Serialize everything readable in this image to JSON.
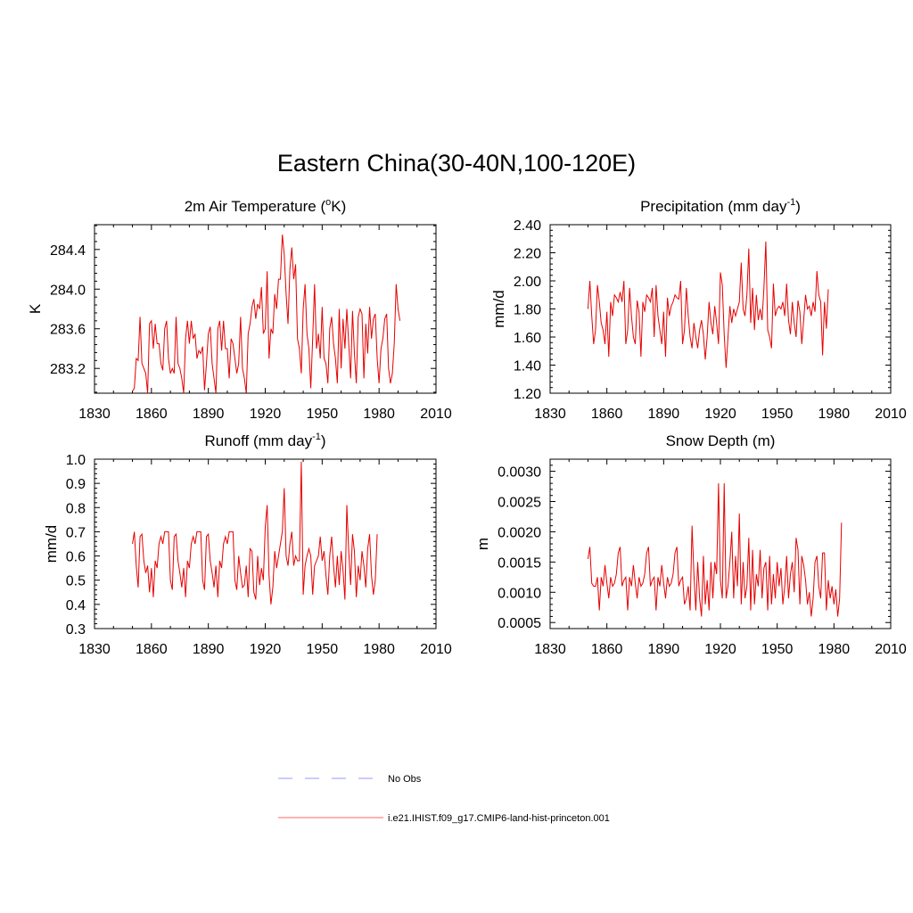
{
  "figure": {
    "title": "Eastern China(30-40N,100-120E)"
  },
  "legend": {
    "items": [
      {
        "label": "No Obs",
        "color": "#9999ff",
        "style": "dashed"
      },
      {
        "label": "i.e21.IHIST.f09_g17.CMIP6-land-hist-princeton.001",
        "color": "#ff6666",
        "style": "solid"
      }
    ]
  },
  "chart_data": [
    {
      "type": "line",
      "title": "2m Air Temperature (",
      "title_sup": "o",
      "title_after": "K)",
      "ylabel": "K",
      "xlim": [
        1830,
        2010
      ],
      "ylim": [
        282.95,
        284.65
      ],
      "xticks": [
        "1830",
        "1860",
        "1890",
        "1920",
        "1950",
        "1980",
        "2010"
      ],
      "yticks": [
        "283.2",
        "283.6",
        "284.0",
        "284.4"
      ],
      "color": "#e60000",
      "series": [
        {
          "x0": 1850,
          "values": [
            282.97,
            283.0,
            283.3,
            283.28,
            283.72,
            283.25,
            283.2,
            283.15,
            282.95,
            283.65,
            283.68,
            283.4,
            283.65,
            283.45,
            283.45,
            283.25,
            283.18,
            283.6,
            283.68,
            283.3,
            283.15,
            283.2,
            283.15,
            283.72,
            283.25,
            283.2,
            283.1,
            282.95,
            283.5,
            283.68,
            283.45,
            283.68,
            283.5,
            283.55,
            283.3,
            283.38,
            283.35,
            283.42,
            282.98,
            283.25,
            283.55,
            283.62,
            283.25,
            283.1,
            282.95,
            283.6,
            283.68,
            283.38,
            283.68,
            283.4,
            283.4,
            283.1,
            283.5,
            283.45,
            283.3,
            283.15,
            283.25,
            283.72,
            283.2,
            283.1,
            282.95,
            283.55,
            283.65,
            283.82,
            283.9,
            283.7,
            283.85,
            283.8,
            284.02,
            283.55,
            283.6,
            284.18,
            283.3,
            283.6,
            283.55,
            283.95,
            283.8,
            284.1,
            284.1,
            284.55,
            284.35,
            283.95,
            283.65,
            284.2,
            284.42,
            284.1,
            284.25,
            283.5,
            283.4,
            283.15,
            283.8,
            284.05,
            283.55,
            283.4,
            283.0,
            283.5,
            284.05,
            283.4,
            283.55,
            283.3,
            283.82,
            283.3,
            283.25,
            283.05,
            283.6,
            283.72,
            283.45,
            283.3,
            283.05,
            283.8,
            283.2,
            283.7,
            283.4,
            283.8,
            283.45,
            283.1,
            283.78,
            283.35,
            283.05,
            283.72,
            283.8,
            283.75,
            283.1,
            283.65,
            283.35,
            283.82,
            283.5,
            283.7,
            283.75,
            283.3,
            283.05,
            283.4,
            283.5,
            283.7,
            283.75,
            283.2,
            283.05,
            283.15,
            283.45,
            284.05,
            283.8,
            283.68
          ]
        }
      ]
    },
    {
      "type": "line",
      "title": "Precipitation (mm day",
      "title_sup": "-1",
      "title_after": ")",
      "ylabel": "mm/d",
      "xlim": [
        1830,
        2010
      ],
      "ylim": [
        1.2,
        2.4
      ],
      "xticks": [
        "1830",
        "1860",
        "1890",
        "1920",
        "1950",
        "1980",
        "2010"
      ],
      "yticks": [
        "1.20",
        "1.40",
        "1.60",
        "1.80",
        "2.00",
        "2.20",
        "2.40"
      ],
      "color": "#e60000",
      "series": [
        {
          "x0": 1850,
          "values": [
            1.8,
            2.0,
            1.75,
            1.55,
            1.65,
            1.97,
            1.85,
            1.7,
            1.65,
            1.55,
            1.78,
            1.46,
            1.85,
            1.75,
            1.9,
            1.88,
            1.85,
            1.92,
            1.85,
            2.0,
            1.55,
            1.65,
            1.95,
            1.75,
            1.6,
            1.55,
            1.86,
            1.78,
            1.46,
            1.85,
            1.78,
            1.9,
            1.88,
            1.85,
            1.95,
            1.6,
            1.97,
            1.75,
            1.65,
            1.55,
            1.78,
            1.46,
            1.88,
            1.75,
            1.82,
            1.85,
            1.9,
            1.88,
            1.87,
            2.0,
            1.55,
            1.65,
            1.95,
            1.75,
            1.6,
            1.52,
            1.7,
            1.6,
            1.52,
            1.65,
            1.72,
            1.62,
            1.44,
            1.6,
            1.85,
            1.7,
            1.62,
            1.82,
            1.7,
            1.55,
            2.06,
            1.97,
            1.62,
            1.38,
            1.6,
            1.82,
            1.7,
            1.8,
            1.75,
            1.8,
            1.85,
            2.13,
            1.8,
            1.75,
            1.9,
            2.23,
            1.7,
            1.95,
            1.65,
            1.9,
            1.72,
            1.8,
            1.72,
            1.95,
            2.28,
            1.65,
            1.6,
            1.52,
            1.98,
            1.75,
            1.8,
            1.82,
            1.8,
            1.85,
            1.75,
            1.98,
            1.72,
            1.62,
            1.85,
            1.7,
            1.6,
            1.86,
            1.78,
            1.55,
            1.72,
            1.9,
            1.8,
            1.82,
            1.75,
            1.85,
            1.78,
            2.07,
            1.9,
            1.85,
            1.47,
            1.85,
            1.66,
            1.94
          ]
        }
      ]
    },
    {
      "type": "line",
      "title": "Runoff (mm day",
      "title_sup": "-1",
      "title_after": ")",
      "ylabel": "mm/d",
      "xlim": [
        1830,
        2010
      ],
      "ylim": [
        0.3,
        1.0
      ],
      "xticks": [
        "1830",
        "1860",
        "1890",
        "1920",
        "1950",
        "1980",
        "2010"
      ],
      "yticks": [
        "0.3",
        "0.4",
        "0.5",
        "0.6",
        "0.7",
        "0.8",
        "0.9",
        "1.0"
      ],
      "color": "#e60000",
      "series": [
        {
          "x0": 1850,
          "values": [
            0.65,
            0.7,
            0.56,
            0.47,
            0.68,
            0.69,
            0.58,
            0.53,
            0.56,
            0.45,
            0.55,
            0.43,
            0.58,
            0.55,
            0.65,
            0.68,
            0.65,
            0.7,
            0.7,
            0.7,
            0.5,
            0.46,
            0.68,
            0.69,
            0.58,
            0.53,
            0.47,
            0.55,
            0.43,
            0.58,
            0.55,
            0.65,
            0.68,
            0.65,
            0.7,
            0.7,
            0.7,
            0.5,
            0.46,
            0.68,
            0.69,
            0.58,
            0.53,
            0.47,
            0.56,
            0.43,
            0.58,
            0.55,
            0.65,
            0.68,
            0.65,
            0.7,
            0.7,
            0.7,
            0.5,
            0.46,
            0.6,
            0.53,
            0.47,
            0.48,
            0.56,
            0.43,
            0.63,
            0.62,
            0.45,
            0.42,
            0.6,
            0.48,
            0.55,
            0.5,
            0.72,
            0.81,
            0.52,
            0.4,
            0.47,
            0.62,
            0.55,
            0.6,
            0.65,
            0.7,
            0.88,
            0.6,
            0.56,
            0.65,
            0.7,
            0.56,
            0.6,
            0.58,
            0.58,
            0.99,
            0.44,
            0.56,
            0.6,
            0.63,
            0.6,
            0.44,
            0.56,
            0.58,
            0.6,
            0.68,
            0.58,
            0.62,
            0.52,
            0.44,
            0.6,
            0.68,
            0.56,
            0.47,
            0.6,
            0.48,
            0.62,
            0.54,
            0.42,
            0.81,
            0.62,
            0.48,
            0.69,
            0.62,
            0.43,
            0.56,
            0.5,
            0.62,
            0.56,
            0.47,
            0.63,
            0.69,
            0.52,
            0.44,
            0.5,
            0.69
          ]
        }
      ]
    },
    {
      "type": "line",
      "title": "Snow Depth (m)",
      "title_sup": "",
      "title_after": "",
      "ylabel": "m",
      "xlim": [
        1830,
        2010
      ],
      "ylim": [
        0.0004,
        0.0032
      ],
      "xticks": [
        "1830",
        "1860",
        "1890",
        "1920",
        "1950",
        "1980",
        "2010"
      ],
      "yticks": [
        "0.0005",
        "0.0010",
        "0.0015",
        "0.0020",
        "0.0025",
        "0.0030"
      ],
      "color": "#e60000",
      "series": [
        {
          "x0": 1850,
          "values": [
            0.00155,
            0.00175,
            0.00115,
            0.0011,
            0.0011,
            0.00125,
            0.0007,
            0.00125,
            0.0011,
            0.00145,
            0.00115,
            0.0009,
            0.00125,
            0.0011,
            0.00115,
            0.0013,
            0.00165,
            0.00175,
            0.0011,
            0.0012,
            0.00125,
            0.0007,
            0.00125,
            0.0011,
            0.00145,
            0.00115,
            0.0009,
            0.00125,
            0.0011,
            0.00115,
            0.0013,
            0.00165,
            0.00175,
            0.0011,
            0.0012,
            0.00125,
            0.0007,
            0.00125,
            0.0011,
            0.00145,
            0.00115,
            0.0009,
            0.00125,
            0.0011,
            0.00115,
            0.0013,
            0.00165,
            0.00175,
            0.0011,
            0.0012,
            0.00125,
            0.0008,
            0.0009,
            0.0011,
            0.0007,
            0.0021,
            0.0013,
            0.0007,
            0.0015,
            0.0009,
            0.0006,
            0.0016,
            0.0008,
            0.0012,
            0.0007,
            0.0015,
            0.0009,
            0.0015,
            0.0013,
            0.0028,
            0.0012,
            0.0009,
            0.0028,
            0.0009,
            0.0011,
            0.0015,
            0.002,
            0.0009,
            0.0016,
            0.0011,
            0.0023,
            0.0008,
            0.0015,
            0.0009,
            0.0011,
            0.0019,
            0.0007,
            0.0017,
            0.0008,
            0.0013,
            0.0011,
            0.0017,
            0.0009,
            0.0014,
            0.0015,
            0.0007,
            0.0016,
            0.0008,
            0.0013,
            0.0009,
            0.0015,
            0.0011,
            0.0014,
            0.0008,
            0.0011,
            0.0016,
            0.0009,
            0.0013,
            0.0015,
            0.001,
            0.0019,
            0.0017,
            0.0008,
            0.0016,
            0.00145,
            0.0012,
            0.0008,
            0.001,
            0.0006,
            0.0009,
            0.0015,
            0.0016,
            0.0011,
            0.0009,
            0.00165,
            0.00165,
            0.0007,
            0.0012,
            0.0009,
            0.0011,
            0.0008,
            0.00105,
            0.0006,
            0.0009,
            0.00215
          ]
        }
      ]
    }
  ]
}
